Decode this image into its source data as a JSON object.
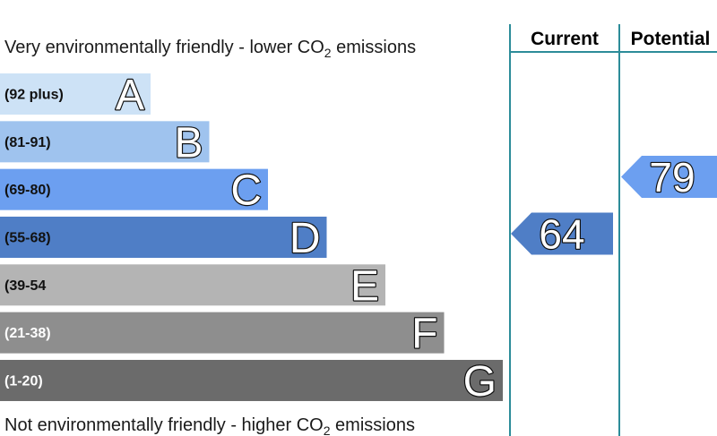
{
  "captions": {
    "top": {
      "text": "Very environmentally friendly - lower CO",
      "subscript": "2",
      "tail": " emissions"
    },
    "bottom": {
      "text": "Not environmentally friendly - higher CO",
      "subscript": "2",
      "tail": " emissions"
    }
  },
  "columns": {
    "current": "Current",
    "potential": "Potential"
  },
  "colors": {
    "divider": "#2c8c99"
  },
  "chart_data": {
    "type": "bar",
    "categories": [
      "A",
      "B",
      "C",
      "D",
      "E",
      "F",
      "G"
    ],
    "bands": [
      {
        "letter": "A",
        "range": "(92 plus)",
        "min": 92,
        "max": null,
        "color": "#cde2f6",
        "text_color": "#111111"
      },
      {
        "letter": "B",
        "range": "(81-91)",
        "min": 81,
        "max": 91,
        "color": "#9fc3ee",
        "text_color": "#111111"
      },
      {
        "letter": "C",
        "range": "(69-80)",
        "min": 69,
        "max": 80,
        "color": "#6c9ff0",
        "text_color": "#111111"
      },
      {
        "letter": "D",
        "range": "(55-68)",
        "min": 55,
        "max": 68,
        "color": "#4f7ec6",
        "text_color": "#111111"
      },
      {
        "letter": "E",
        "range": "(39-54",
        "min": 39,
        "max": 54,
        "color": "#b4b4b4",
        "text_color": "#111111"
      },
      {
        "letter": "F",
        "range": "(21-38)",
        "min": 21,
        "max": 38,
        "color": "#8e8e8e",
        "text_color": "#ffffff"
      },
      {
        "letter": "G",
        "range": "(1-20)",
        "min": 1,
        "max": 20,
        "color": "#6b6b6b",
        "text_color": "#ffffff"
      }
    ],
    "current": 64,
    "potential": 79
  }
}
